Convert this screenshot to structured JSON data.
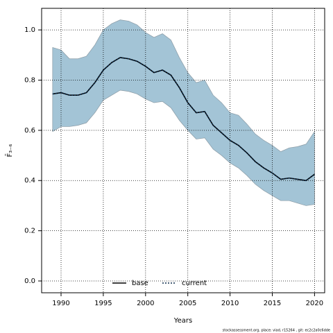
{
  "chart_data": {
    "type": "line",
    "xlabel": "Years",
    "ylabel": "F̄₃₋₆",
    "footer": "stockassessment.org, place: viad, r15264 , git: ec2c2a0c6dde",
    "x": [
      1989,
      1990,
      1991,
      1992,
      1993,
      1994,
      1995,
      1996,
      1997,
      1998,
      1999,
      2000,
      2001,
      2002,
      2003,
      2004,
      2005,
      2006,
      2007,
      2008,
      2009,
      2010,
      2011,
      2012,
      2013,
      2014,
      2015,
      2016,
      2017,
      2018,
      2019,
      2020
    ],
    "series": [
      {
        "name": "base",
        "color": "#000000",
        "dash": "solid",
        "values": [
          0.745,
          0.75,
          0.74,
          0.74,
          0.75,
          0.79,
          0.84,
          0.87,
          0.89,
          0.885,
          0.875,
          0.855,
          0.83,
          0.84,
          0.82,
          0.77,
          0.71,
          0.67,
          0.675,
          0.62,
          0.59,
          0.56,
          0.54,
          0.51,
          0.475,
          0.45,
          0.43,
          0.405,
          0.41,
          0.405,
          0.4,
          0.425
        ]
      },
      {
        "name": "current",
        "color": "#0a2a4a",
        "dash": "dotted",
        "values": [
          0.745,
          0.75,
          0.74,
          0.74,
          0.75,
          0.79,
          0.84,
          0.87,
          0.89,
          0.885,
          0.875,
          0.855,
          0.83,
          0.84,
          0.82,
          0.77,
          0.71,
          0.67,
          0.675,
          0.62,
          0.59,
          0.56,
          0.54,
          0.51,
          0.475,
          0.45,
          0.43,
          0.405,
          0.41,
          0.405,
          0.4,
          0.425
        ]
      }
    ],
    "band": {
      "color": "#a3c4d6",
      "upper": [
        0.93,
        0.92,
        0.885,
        0.885,
        0.895,
        0.94,
        1.0,
        1.025,
        1.04,
        1.035,
        1.02,
        0.99,
        0.97,
        0.985,
        0.96,
        0.89,
        0.83,
        0.79,
        0.8,
        0.74,
        0.71,
        0.67,
        0.66,
        0.625,
        0.585,
        0.56,
        0.54,
        0.515,
        0.53,
        0.535,
        0.545,
        0.595
      ],
      "lower": [
        0.595,
        0.615,
        0.615,
        0.62,
        0.63,
        0.67,
        0.72,
        0.74,
        0.76,
        0.755,
        0.745,
        0.725,
        0.71,
        0.715,
        0.69,
        0.64,
        0.6,
        0.565,
        0.57,
        0.525,
        0.5,
        0.47,
        0.45,
        0.42,
        0.385,
        0.36,
        0.34,
        0.32,
        0.32,
        0.31,
        0.3,
        0.305
      ]
    },
    "xlim": [
      1987.7,
      2021.2
    ],
    "ylim": [
      -0.047,
      1.086
    ],
    "xticks": [
      1990,
      1995,
      2000,
      2005,
      2010,
      2015,
      2020
    ],
    "yticks": [
      {
        "value": 0,
        "label": "0.0"
      },
      {
        "value": 0.2,
        "label": "0.2"
      },
      {
        "value": 0.4,
        "label": "0.4"
      },
      {
        "value": 0.6,
        "label": "0.6"
      },
      {
        "value": 0.8,
        "label": "0.8"
      },
      {
        "value": 1,
        "label": "1.0"
      }
    ],
    "grid": true,
    "legend": "bottom"
  }
}
